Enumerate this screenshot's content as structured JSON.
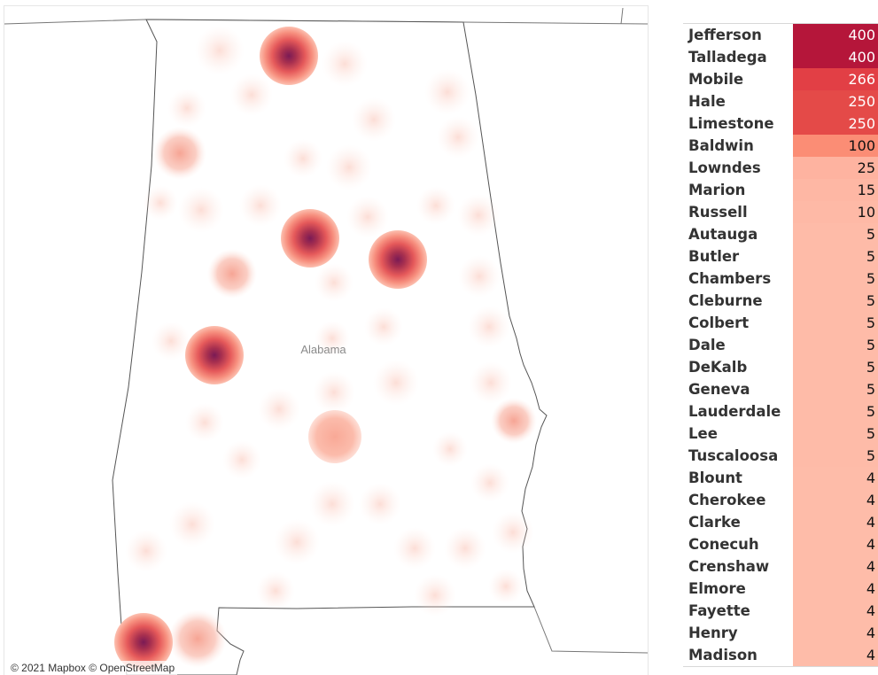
{
  "map": {
    "state_label": "Alabama",
    "attribution": "© 2021 Mapbox © OpenStreetMap"
  },
  "table": {
    "rows": [
      {
        "county": "Jefferson",
        "value": "400",
        "color": "#b5163a"
      },
      {
        "county": "Talladega",
        "value": "400",
        "color": "#b5163a"
      },
      {
        "county": "Mobile",
        "value": "266",
        "color": "#e23f45"
      },
      {
        "county": "Hale",
        "value": "250",
        "color": "#e44a48"
      },
      {
        "county": "Limestone",
        "value": "250",
        "color": "#e44a48"
      },
      {
        "county": "Baldwin",
        "value": "100",
        "color": "#fb8d75"
      },
      {
        "county": "Lowndes",
        "value": "25",
        "color": "#feb3a0"
      },
      {
        "county": "Marion",
        "value": "15",
        "color": "#feb7a4"
      },
      {
        "county": "Russell",
        "value": "10",
        "color": "#feb9a6"
      },
      {
        "county": "Autauga",
        "value": "5",
        "color": "#febba8"
      },
      {
        "county": "Butler",
        "value": "5",
        "color": "#febba8"
      },
      {
        "county": "Chambers",
        "value": "5",
        "color": "#febba8"
      },
      {
        "county": "Cleburne",
        "value": "5",
        "color": "#febba8"
      },
      {
        "county": "Colbert",
        "value": "5",
        "color": "#febba8"
      },
      {
        "county": "Dale",
        "value": "5",
        "color": "#febba8"
      },
      {
        "county": "DeKalb",
        "value": "5",
        "color": "#febba8"
      },
      {
        "county": "Geneva",
        "value": "5",
        "color": "#febba8"
      },
      {
        "county": "Lauderdale",
        "value": "5",
        "color": "#febba8"
      },
      {
        "county": "Lee",
        "value": "5",
        "color": "#febba8"
      },
      {
        "county": "Tuscaloosa",
        "value": "5",
        "color": "#febba8"
      },
      {
        "county": "Blount",
        "value": "4",
        "color": "#febca9"
      },
      {
        "county": "Cherokee",
        "value": "4",
        "color": "#febca9"
      },
      {
        "county": "Clarke",
        "value": "4",
        "color": "#febca9"
      },
      {
        "county": "Conecuh",
        "value": "4",
        "color": "#febca9"
      },
      {
        "county": "Crenshaw",
        "value": "4",
        "color": "#febca9"
      },
      {
        "county": "Elmore",
        "value": "4",
        "color": "#febca9"
      },
      {
        "county": "Fayette",
        "value": "4",
        "color": "#febca9"
      },
      {
        "county": "Henry",
        "value": "4",
        "color": "#febca9"
      },
      {
        "county": "Madison",
        "value": "4",
        "color": "#febca9"
      }
    ]
  }
}
